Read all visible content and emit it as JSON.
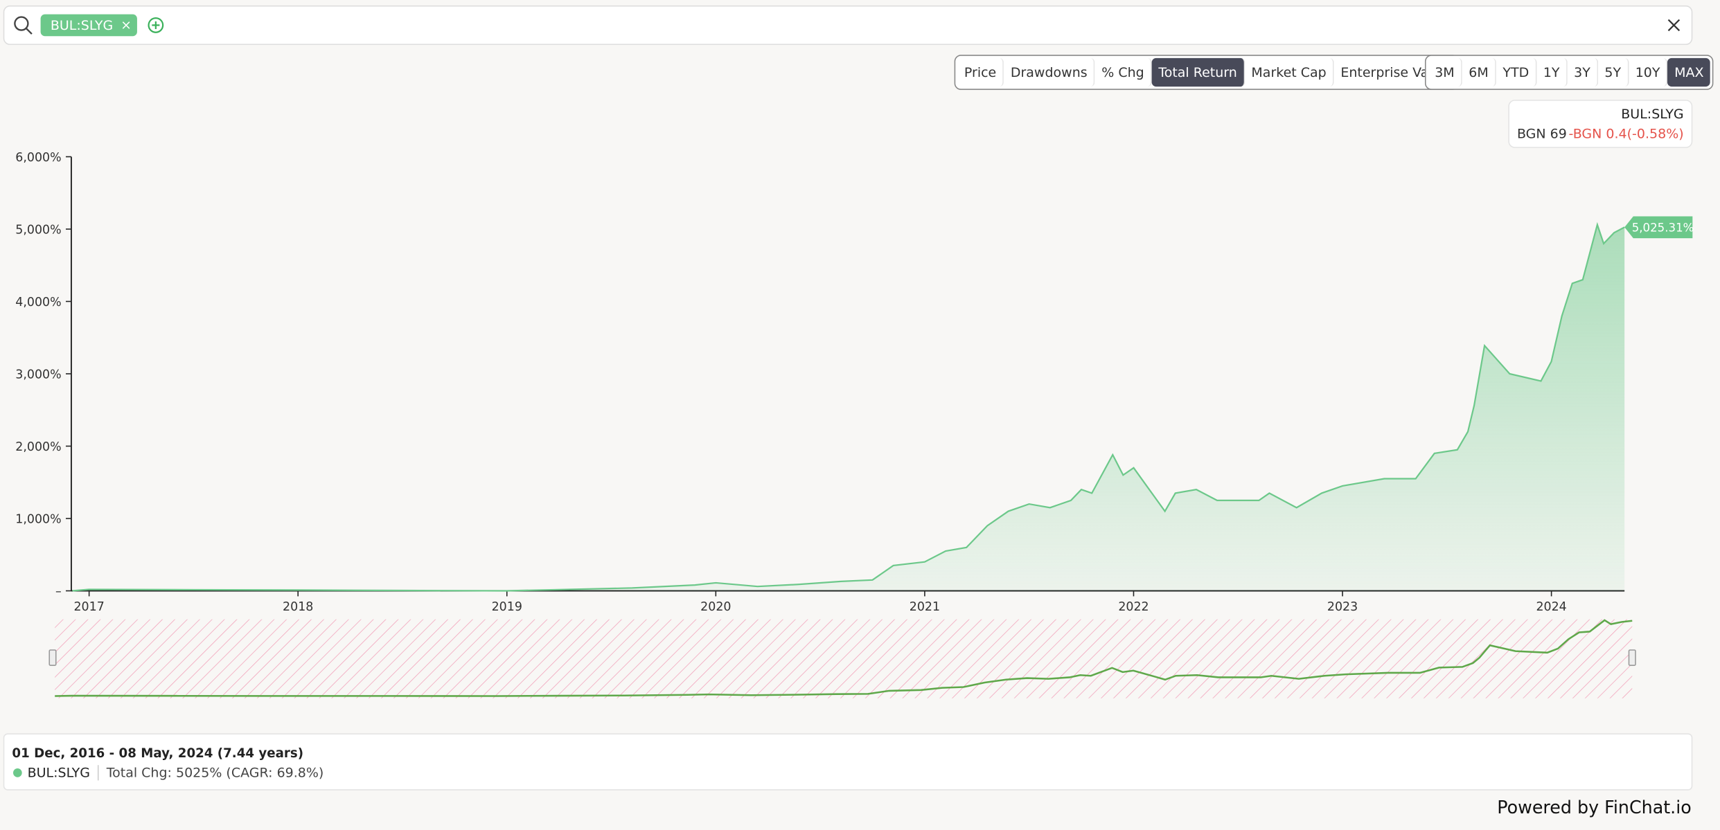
{
  "search": {
    "tags": [
      "BUL:SLYG"
    ]
  },
  "metric_buttons": [
    "Price",
    "Drawdowns",
    "% Chg",
    "Total Return",
    "Market Cap",
    "Enterprise Value"
  ],
  "active_metric_index": 3,
  "period_buttons": [
    "3M",
    "6M",
    "YTD",
    "1Y",
    "3Y",
    "5Y",
    "10Y",
    "MAX"
  ],
  "active_period_index": 7,
  "legend_card": {
    "name": "BUL:SLYG",
    "price": "BGN 69",
    "change": "-BGN 0.4(-0.58%)"
  },
  "chart_data": {
    "type": "line",
    "x": [
      2016.92,
      2017,
      2017.5,
      2018,
      2018.5,
      2019,
      2019.3,
      2019.6,
      2019.9,
      2020,
      2020.2,
      2020.4,
      2020.6,
      2020.75,
      2020.85,
      2021,
      2021.1,
      2021.2,
      2021.3,
      2021.4,
      2021.5,
      2021.6,
      2021.7,
      2021.75,
      2021.8,
      2021.9,
      2021.95,
      2022,
      2022.1,
      2022.15,
      2022.2,
      2022.3,
      2022.4,
      2022.6,
      2022.65,
      2022.78,
      2022.9,
      2023,
      2023.2,
      2023.35,
      2023.44,
      2023.55,
      2023.6,
      2023.63,
      2023.68,
      2023.8,
      2023.95,
      2024,
      2024.05,
      2024.1,
      2024.15,
      2024.22,
      2024.25,
      2024.3,
      2024.35
    ],
    "series": [
      {
        "name": "BUL:SLYG",
        "color": "#6cc88a",
        "values": [
          0,
          20,
          15,
          10,
          5,
          0,
          20,
          40,
          80,
          110,
          60,
          90,
          130,
          150,
          350,
          400,
          550,
          600,
          900,
          1100,
          1200,
          1150,
          1250,
          1400,
          1350,
          1880,
          1600,
          1700,
          1300,
          1100,
          1350,
          1400,
          1250,
          1250,
          1350,
          1150,
          1350,
          1450,
          1550,
          1550,
          1900,
          1950,
          2200,
          2560,
          3390,
          3000,
          2900,
          3170,
          3800,
          4250,
          4300,
          5060,
          4800,
          4950,
          5025.31
        ],
        "value_labels": [
          null,
          null,
          null,
          null,
          null,
          null,
          null,
          null,
          null,
          null,
          null,
          null,
          null,
          null,
          null,
          null,
          null,
          null,
          null,
          null,
          null,
          null,
          null,
          null,
          null,
          null,
          null,
          null,
          null,
          null,
          null,
          null,
          null,
          null,
          null,
          null,
          null,
          null,
          null,
          null,
          null,
          null,
          null,
          null,
          null,
          null,
          null,
          null,
          null,
          null,
          null,
          null,
          null,
          null,
          "5,025.31%"
        ]
      }
    ],
    "xlim": [
      2016.92,
      2024.35
    ],
    "xticks": [
      2017,
      2018,
      2019,
      2020,
      2021,
      2022,
      2023,
      2024
    ],
    "ylim": [
      0,
      6000
    ],
    "yticks": [
      {
        "value": 0,
        "label": "–"
      },
      {
        "value": 1000,
        "label": "1,000%"
      },
      {
        "value": 2000,
        "label": "2,000%"
      },
      {
        "value": 3000,
        "label": "3,000%"
      },
      {
        "value": 4000,
        "label": "4,000%"
      },
      {
        "value": 5000,
        "label": "5,000%"
      },
      {
        "value": 6000,
        "label": "6,000%"
      }
    ]
  },
  "summary": {
    "range": "01 Dec, 2016 - 08 May, 2024 (7.44 years)",
    "stats": "Total Chg: 5025% (CAGR: 69.8%)"
  },
  "footer": "Powered by FinChat.io"
}
